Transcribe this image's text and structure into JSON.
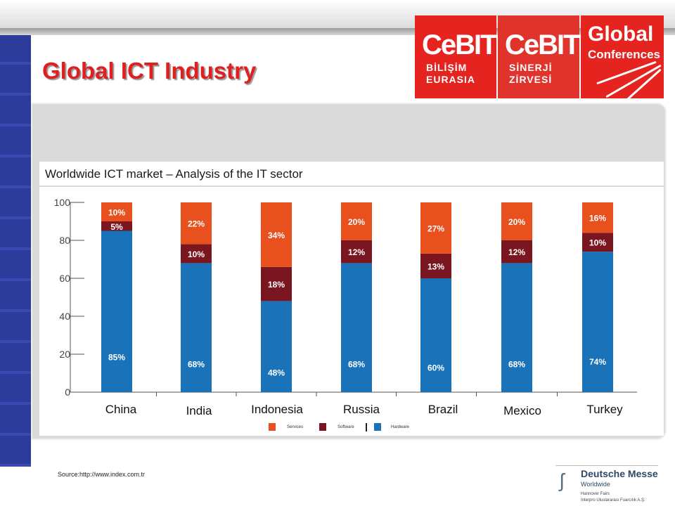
{
  "title": "Global ICT Industry",
  "logos": {
    "cebit_eurasia": {
      "name": "CeBIT",
      "line1": "BİLİŞİM",
      "line2": "EURASIA"
    },
    "cebit_sinerji": {
      "name": "CeBIT",
      "line1": "SİNERJİ",
      "line2": "ZİRVESİ"
    },
    "global_conferences": {
      "line1": "Global",
      "line2": "Conferences"
    }
  },
  "chart_data": {
    "type": "bar",
    "stacked": true,
    "title": "Worldwide ICT market – Analysis of the IT sector",
    "categories": [
      "China",
      "India",
      "Indonesia",
      "Russia",
      "Brazil",
      "Mexico",
      "Turkey"
    ],
    "series": [
      {
        "name": "Hardware",
        "color": "#1a72b8",
        "values": [
          85,
          68,
          48,
          68,
          60,
          68,
          74
        ]
      },
      {
        "name": "Software",
        "color": "#7a1620",
        "values": [
          5,
          10,
          18,
          12,
          13,
          12,
          10
        ]
      },
      {
        "name": "Services",
        "color": "#e8501e",
        "values": [
          10,
          22,
          34,
          20,
          27,
          20,
          16
        ]
      }
    ],
    "yticks": [
      "0",
      "20",
      "40",
      "60",
      "80",
      "100"
    ],
    "ylim": [
      0,
      100
    ],
    "legend_position": "bottom-center",
    "grid": false
  },
  "legend": [
    {
      "label": "Services",
      "color": "#e8501e"
    },
    {
      "label": "Software",
      "color": "#7a1620"
    },
    {
      "label": "Hardware",
      "color": "#1a72b8"
    }
  ],
  "source": "Source:http://www.index.com.tr",
  "footer_logo": {
    "name": "Deutsche Messe",
    "sub": "Worldwide",
    "fine1": "Hannover Fairs",
    "fine2": "Interpro Uluslararası Fuarcılık A.Ş."
  }
}
